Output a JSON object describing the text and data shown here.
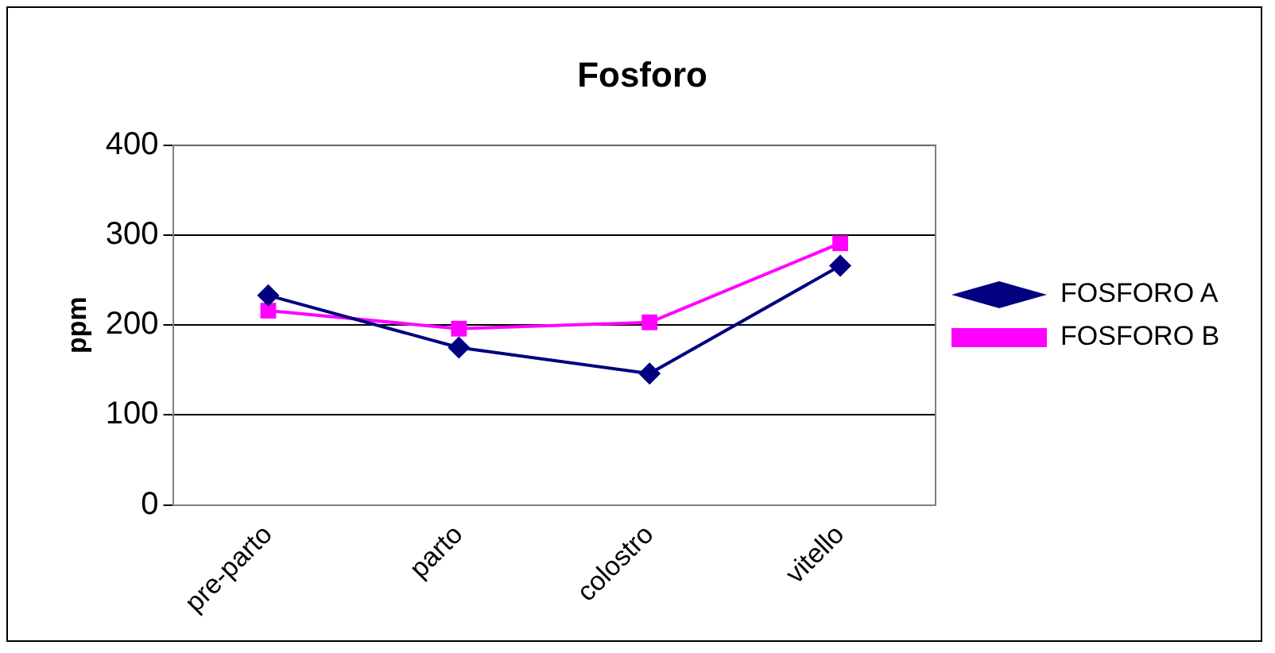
{
  "chart_data": {
    "type": "line",
    "title": "Fosforo",
    "ylabel": "ppm",
    "categories": [
      "pre-parto",
      "parto",
      "colostro",
      "vitello"
    ],
    "series": [
      {
        "name": "FOSFORO A",
        "color": "#000080",
        "marker": "diamond",
        "values": [
          233,
          175,
          146,
          266
        ]
      },
      {
        "name": "FOSFORO B",
        "color": "#ff00ff",
        "marker": "square",
        "values": [
          216,
          196,
          203,
          291
        ]
      }
    ],
    "ylim": [
      0,
      400
    ],
    "yticks": [
      0,
      100,
      200,
      300,
      400
    ],
    "grid": "y",
    "legend": "right"
  }
}
